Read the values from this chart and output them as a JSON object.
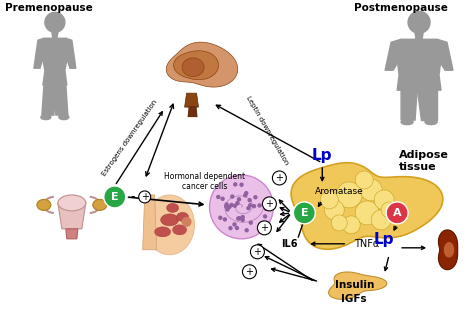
{
  "bg_color": "#ffffff",
  "premenopause_label": "Premenopause",
  "postmenopause_label": "Postmenopause",
  "adipose_tissue_label": "Adipose\ntissue",
  "aromatase_label": "Aromatase",
  "hormonal_label": "Hormonal dependent\ncancer cells",
  "estrogens_down_label": "Estrogens downregulation",
  "leptin_down_label": "Leptin downregulation",
  "il6_label": "IL6",
  "tnf_label": "TNFα",
  "insulin_label": "Insulin",
  "igfs_label": "IGFs",
  "e_circle_color": "#28a745",
  "a_circle_color": "#dc3545",
  "lp_color": "#0000cc",
  "adipose_fill": "#f0c85a",
  "adipose_edge": "#d4a020",
  "brain_outer": "#c8874a",
  "brain_mid": "#8B4513",
  "brain_inner": "#d4956a",
  "silhouette_color": "#999999",
  "arrow_color": "#000000",
  "plus_bg": "#ffffff",
  "plus_edge": "#000000",
  "uterus_color": "#d4a0a0",
  "ovary_color": "#c8a060",
  "breast_skin": "#f5cba0",
  "breast_tissue": "#c0504d",
  "cancer_cell_fill": "#e8b4d8",
  "cancer_cell_edge": "#cc88cc",
  "cancer_dot": "#9060a0",
  "pancreas_fill": "#f0c060",
  "kidney_fill": "#8B3500",
  "kidney_inner": "#c06030"
}
